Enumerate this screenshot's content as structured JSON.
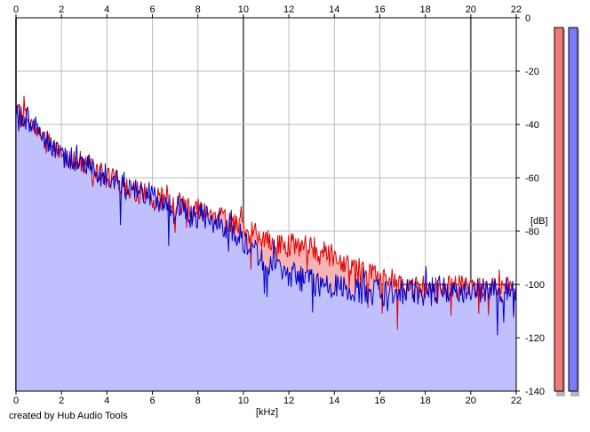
{
  "colors": {
    "background": "#ffffff",
    "grid": "#bdbdbd",
    "grid_major": "#6e6e6e",
    "left_line": "#e00000",
    "left_fill": "#f6b4b4",
    "right_line": "#0000c8",
    "right_fill": "#c0c0ff",
    "left_meter": "#f07a7a",
    "right_meter": "#7b7bff",
    "meter_shadow": "#b5b5b5"
  },
  "chart_data": {
    "type": "area",
    "title": "",
    "xlabel": "[kHz]",
    "ylabel": "[dB]",
    "xlim": [
      0,
      22
    ],
    "ylim": [
      -140,
      0
    ],
    "x_ticks": [
      0,
      2,
      4,
      6,
      8,
      10,
      12,
      14,
      16,
      18,
      20,
      22
    ],
    "x_major_ticks": [
      0,
      10,
      20
    ],
    "y_ticks": [
      0,
      -20,
      -40,
      -60,
      -80,
      -100,
      -120,
      -140
    ],
    "y_major_ticks": [
      -100
    ],
    "x_tick_labels_position": "top and bottom",
    "y_tick_labels_position": "right",
    "grid": true,
    "legend": "none",
    "series": [
      {
        "color": "#e00000",
        "x": [
          0,
          0.5,
          1,
          1.5,
          2,
          3,
          4,
          5,
          6,
          7,
          8,
          9,
          10,
          10.5,
          11,
          11.5,
          12,
          12.5,
          13,
          13.5,
          14,
          14.5,
          15,
          15.5,
          16,
          17,
          18,
          19,
          20,
          21,
          22
        ],
        "values": [
          -37,
          -37,
          -43,
          -48,
          -51,
          -55,
          -60,
          -64,
          -67,
          -69,
          -71,
          -75,
          -79,
          -81,
          -84,
          -85,
          -85,
          -86,
          -86,
          -87,
          -90,
          -92,
          -94,
          -96,
          -98,
          -101,
          -101,
          -101,
          -101,
          -101,
          -101
        ]
      },
      {
        "color": "#0000c8",
        "x": [
          0,
          0.5,
          1,
          1.5,
          2,
          3,
          4,
          5,
          6,
          7,
          8,
          9,
          10,
          10.5,
          11,
          11.5,
          12,
          12.5,
          13,
          13.5,
          14,
          14.5,
          15,
          15.5,
          16,
          17,
          18,
          19,
          20,
          21,
          22
        ],
        "values": [
          -37,
          -37,
          -43,
          -47,
          -51,
          -55,
          -60,
          -64,
          -67,
          -71,
          -74,
          -77,
          -83,
          -88,
          -91,
          -94,
          -96,
          -98,
          -99,
          -101,
          -101,
          -102,
          -102,
          -103,
          -103,
          -103,
          -103,
          -102,
          -102,
          -102,
          -102
        ]
      }
    ]
  },
  "meters": [
    {
      "name": "left",
      "level": 0
    },
    {
      "name": "right",
      "level": 0
    }
  ],
  "footer": {
    "credit": "created by Hub Audio Tools"
  }
}
